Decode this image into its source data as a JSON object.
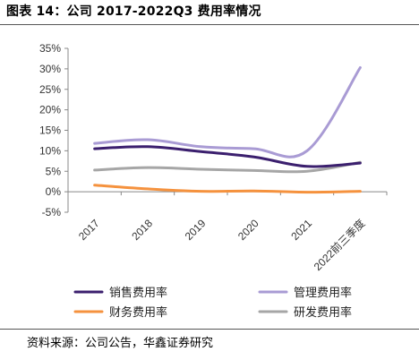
{
  "title": "图表 14：公司 2017-2022Q3 费用率情况",
  "source": "资料来源：公司公告，华鑫证券研究",
  "chart_data": {
    "type": "line",
    "categories": [
      "2017",
      "2018",
      "2019",
      "2020",
      "2021",
      "2022前三季度"
    ],
    "ylim": [
      -5,
      35
    ],
    "yticks": [
      "35%",
      "30%",
      "25%",
      "20%",
      "15%",
      "10%",
      "5%",
      "0%",
      "-5%"
    ],
    "grid": false,
    "legend_position": "bottom",
    "series": [
      {
        "name": "销售费用率",
        "color": "#3b1f6e",
        "values": [
          10.5,
          11.0,
          9.8,
          8.5,
          6.2,
          7.0
        ]
      },
      {
        "name": "管理费用率",
        "color": "#a99bd4",
        "values": [
          11.8,
          12.7,
          11.0,
          10.5,
          10.0,
          30.3
        ]
      },
      {
        "name": "财务费用率",
        "color": "#f5923e",
        "values": [
          1.6,
          0.7,
          0.1,
          0.2,
          -0.1,
          0.1
        ]
      },
      {
        "name": "研发费用率",
        "color": "#a6a6a6",
        "values": [
          5.3,
          5.9,
          5.5,
          5.2,
          5.0,
          7.2
        ]
      }
    ]
  }
}
